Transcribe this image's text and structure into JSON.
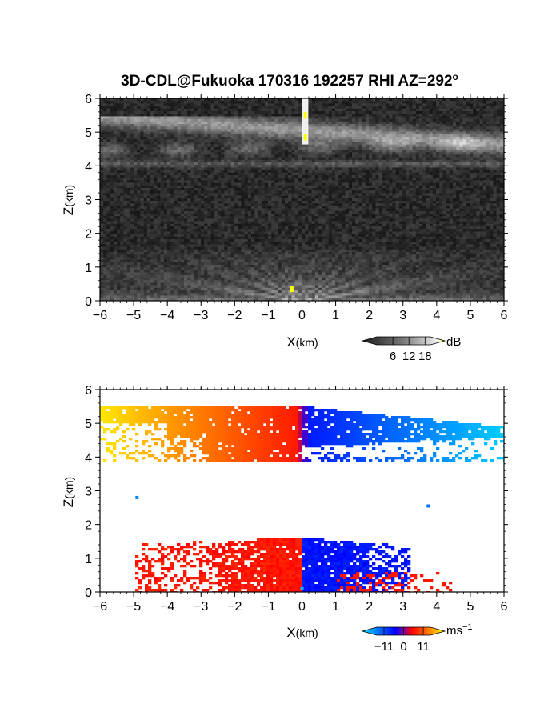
{
  "title_main": "3D-CDL@Fukuoka 170316 192257 RHI AZ=292",
  "title_degree": "o",
  "colors": {
    "background": "#ffffff",
    "axis": "#000000",
    "highlight": "#ffff00",
    "vel_neg_far": "#00dcff",
    "vel_neg_near": "#0000ff",
    "vel_pos_near": "#ff0000",
    "vel_pos_far": "#ffff00"
  },
  "chart_data": [
    {
      "type": "heatmap",
      "name": "intensity-panel",
      "xlabel_base": "X",
      "xlabel_unit": "(km)",
      "ylabel_base": "Z",
      "ylabel_unit": "(km)",
      "xlim": [
        -6,
        6
      ],
      "ylim": [
        0,
        6
      ],
      "xticks": [
        "−6",
        "−5",
        "−4",
        "−3",
        "−2",
        "−1",
        "0",
        "1",
        "2",
        "3",
        "4",
        "5",
        "6"
      ],
      "yticks": [
        "0",
        "1",
        "2",
        "3",
        "4",
        "5",
        "6"
      ],
      "colorbar": {
        "unit": "dB",
        "ticks": [
          "6",
          "12",
          "18"
        ],
        "tick_values": [
          6,
          12,
          18
        ],
        "range": [
          0,
          20
        ],
        "colormap": "grayscale"
      },
      "features": [
        {
          "label": "upper cloud layer",
          "x": [
            -6,
            6
          ],
          "z": [
            3.9,
            5.5
          ]
        },
        {
          "label": "boundary layer fan",
          "x": [
            -6,
            6
          ],
          "z": [
            0,
            1.5
          ]
        },
        {
          "label": "vertical strong return",
          "x": [
            0.1,
            0.1
          ],
          "z": [
            4.8,
            6.0
          ]
        }
      ]
    },
    {
      "type": "heatmap",
      "name": "velocity-panel",
      "xlabel_base": "X",
      "xlabel_unit": "(km)",
      "ylabel_base": "Z",
      "ylabel_unit": "(km)",
      "xlim": [
        -6,
        6
      ],
      "ylim": [
        0,
        6
      ],
      "xticks": [
        "−6",
        "−5",
        "−4",
        "−3",
        "−2",
        "−1",
        "0",
        "1",
        "2",
        "3",
        "4",
        "5",
        "6"
      ],
      "yticks": [
        "0",
        "1",
        "2",
        "3",
        "4",
        "5",
        "6"
      ],
      "colorbar": {
        "unit_base": "ms",
        "unit_exp": "−1",
        "ticks": [
          "−11",
          "0",
          "11"
        ],
        "tick_values": [
          -11,
          0,
          11
        ],
        "range": [
          -15,
          15
        ],
        "colormap": "cyan-blue-red-yellow"
      },
      "features": [
        {
          "label": "upper layer",
          "x": [
            -6,
            6
          ],
          "z": [
            3.8,
            5.6
          ],
          "velocity_left": 11,
          "velocity_right": -11
        },
        {
          "label": "lower layer",
          "x": [
            -5.0,
            4.5
          ],
          "z": [
            0,
            1.6
          ],
          "velocity_left": 4,
          "velocity_right": -4
        }
      ]
    }
  ]
}
